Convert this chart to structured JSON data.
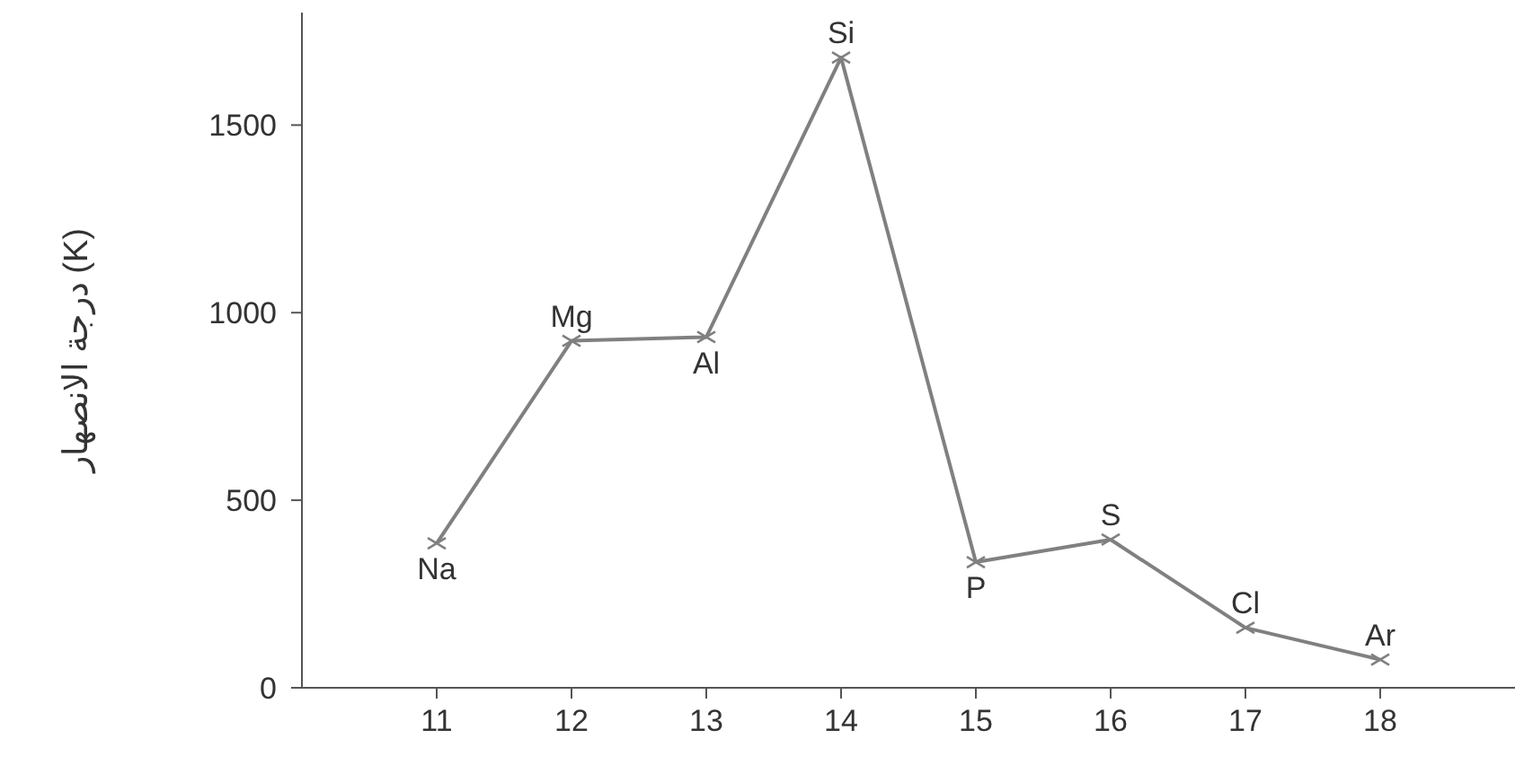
{
  "chart_data": {
    "type": "line",
    "ylabel": "درجة الانصهار (K)",
    "x": [
      11,
      12,
      13,
      14,
      15,
      16,
      17,
      18
    ],
    "series": [
      {
        "color": "#808080",
        "values": [
          385,
          925,
          935,
          1680,
          335,
          395,
          160,
          75
        ]
      }
    ],
    "xlim": [
      10,
      19
    ],
    "xticks": [
      11,
      12,
      13,
      14,
      15,
      16,
      17,
      18
    ],
    "ylim": [
      0,
      1800
    ],
    "yticks": [
      0,
      500,
      1000,
      1500
    ],
    "grid": false,
    "legend": false,
    "marker": "cross",
    "line_style": "solid",
    "annotations": [
      {
        "text": "Na",
        "x": 11,
        "y": 385
      },
      {
        "text": "Mg",
        "x": 12,
        "y": 925
      },
      {
        "text": "Al",
        "x": 13,
        "y": 935
      },
      {
        "text": "Si",
        "x": 14,
        "y": 1680
      },
      {
        "text": "P",
        "x": 15,
        "y": 335
      },
      {
        "text": "S",
        "x": 16,
        "y": 395
      },
      {
        "text": "Cl",
        "x": 17,
        "y": 160
      },
      {
        "text": "Ar",
        "x": 18,
        "y": 75
      }
    ]
  }
}
